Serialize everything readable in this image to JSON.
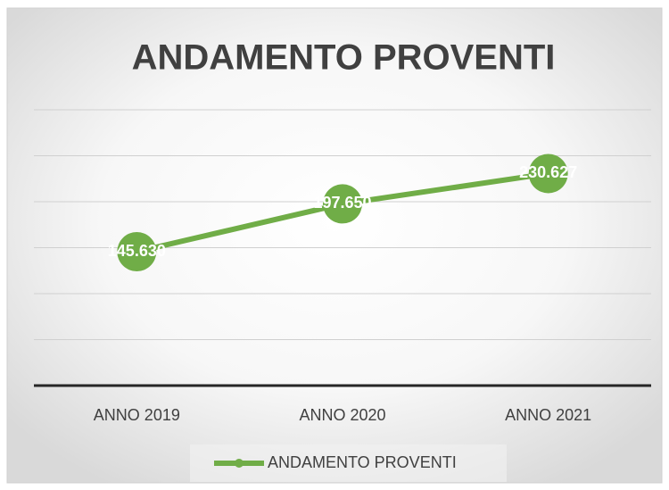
{
  "chart_data": {
    "type": "line",
    "title": "ANDAMENTO PROVENTI",
    "categories": [
      "ANNO 2019",
      "ANNO 2020",
      "ANNO 2021"
    ],
    "series": [
      {
        "name": "ANDAMENTO PROVENTI",
        "color": "#70ad47",
        "values": [
          145630,
          197650,
          230627
        ],
        "value_labels": [
          "145.630",
          "197.650",
          "230.627"
        ]
      }
    ],
    "ylim": [
      0,
      300000
    ],
    "yticks": [
      0,
      50000,
      100000,
      150000,
      200000,
      250000,
      300000
    ],
    "grid": true,
    "legend": "bottom"
  }
}
